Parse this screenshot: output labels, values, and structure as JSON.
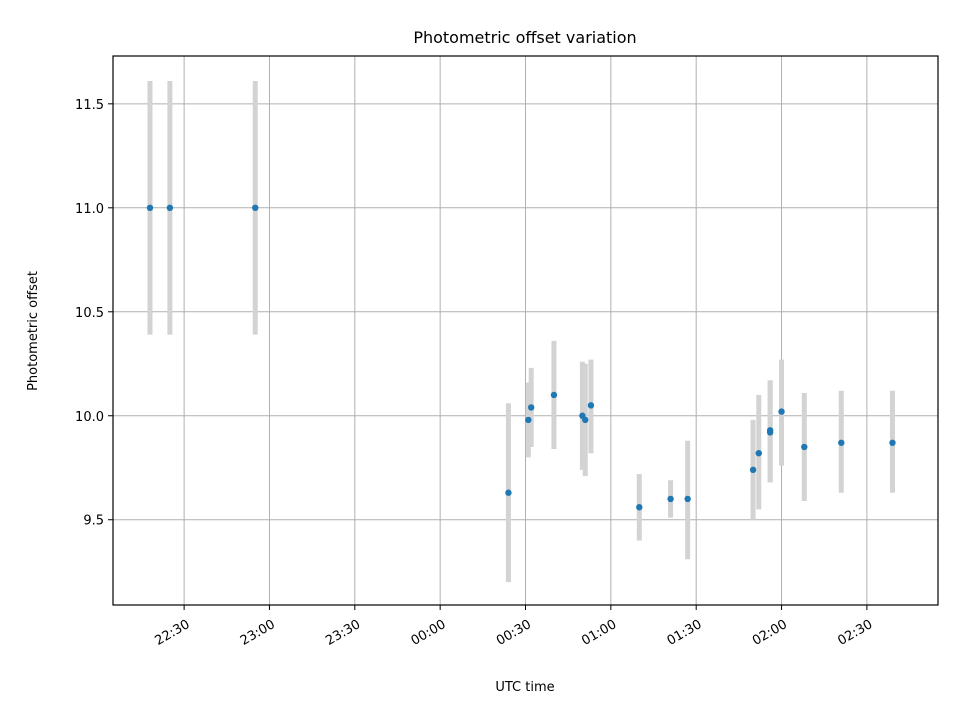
{
  "chart_data": {
    "type": "scatter",
    "title": "Photometric offset variation",
    "xlabel": "UTC time",
    "ylabel": "Photometric offset",
    "x_unit": "UTC time",
    "xlim": [
      "22:05",
      "02:55"
    ],
    "ylim": [
      9.09,
      11.73
    ],
    "x_ticks": [
      "22:30",
      "23:00",
      "23:30",
      "00:00",
      "00:30",
      "01:00",
      "01:30",
      "02:00",
      "02:30"
    ],
    "y_ticks": [
      "9.5",
      "10.0",
      "10.5",
      "11.0",
      "11.5"
    ],
    "grid": true,
    "marker_color": "#1f77b4",
    "errorbar_color": "#d3d3d3",
    "points": [
      {
        "time": "22:18",
        "y": 11.0,
        "ylow": 10.39,
        "yhigh": 11.61
      },
      {
        "time": "22:25",
        "y": 11.0,
        "ylow": 10.39,
        "yhigh": 11.61
      },
      {
        "time": "22:55",
        "y": 11.0,
        "ylow": 10.39,
        "yhigh": 11.61
      },
      {
        "time": "00:24",
        "y": 9.63,
        "ylow": 9.2,
        "yhigh": 10.06
      },
      {
        "time": "00:31",
        "y": 9.98,
        "ylow": 9.8,
        "yhigh": 10.16
      },
      {
        "time": "00:32",
        "y": 10.04,
        "ylow": 9.85,
        "yhigh": 10.23
      },
      {
        "time": "00:40",
        "y": 10.1,
        "ylow": 9.84,
        "yhigh": 10.36
      },
      {
        "time": "00:50",
        "y": 10.0,
        "ylow": 9.74,
        "yhigh": 10.26
      },
      {
        "time": "00:51",
        "y": 9.98,
        "ylow": 9.71,
        "yhigh": 10.25
      },
      {
        "time": "00:53",
        "y": 10.05,
        "ylow": 9.82,
        "yhigh": 10.27
      },
      {
        "time": "01:10",
        "y": 9.56,
        "ylow": 9.4,
        "yhigh": 9.72
      },
      {
        "time": "01:21",
        "y": 9.6,
        "ylow": 9.51,
        "yhigh": 9.69
      },
      {
        "time": "01:27",
        "y": 9.6,
        "ylow": 9.31,
        "yhigh": 9.88
      },
      {
        "time": "01:50",
        "y": 9.74,
        "ylow": 9.5,
        "yhigh": 9.98
      },
      {
        "time": "01:52",
        "y": 9.82,
        "ylow": 9.55,
        "yhigh": 10.1
      },
      {
        "time": "01:56",
        "y": 9.93,
        "ylow": 9.68,
        "yhigh": 10.17
      },
      {
        "time": "01:56",
        "y": 9.92,
        "ylow": 9.68,
        "yhigh": 10.17
      },
      {
        "time": "02:00",
        "y": 10.02,
        "ylow": 9.76,
        "yhigh": 10.27
      },
      {
        "time": "02:08",
        "y": 9.85,
        "ylow": 9.59,
        "yhigh": 10.11
      },
      {
        "time": "02:21",
        "y": 9.87,
        "ylow": 9.63,
        "yhigh": 10.12
      },
      {
        "time": "02:39",
        "y": 9.87,
        "ylow": 9.63,
        "yhigh": 10.12
      }
    ]
  }
}
